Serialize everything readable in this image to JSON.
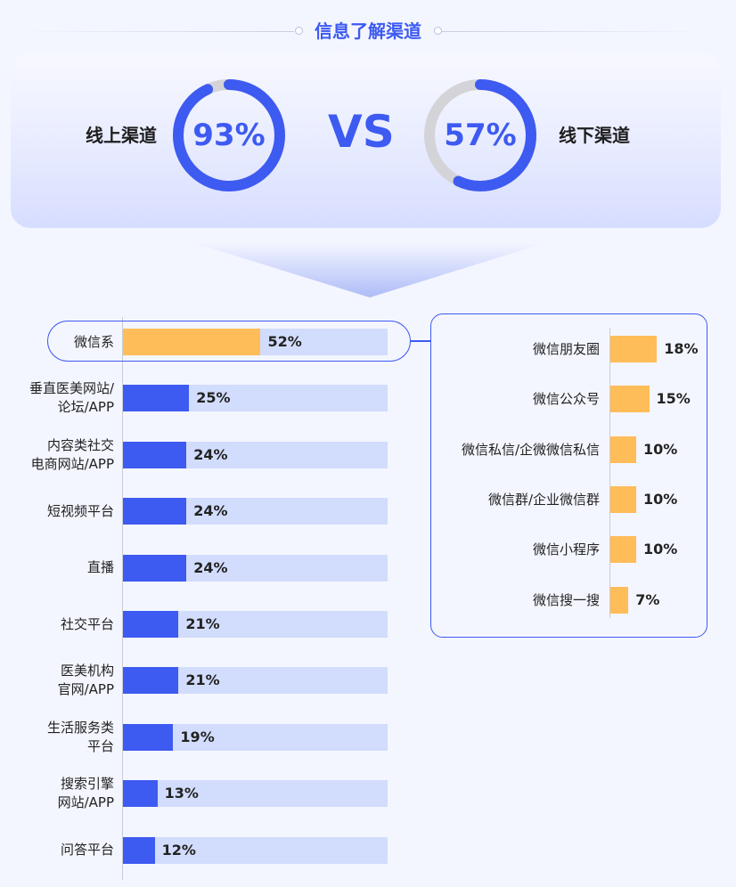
{
  "header": {
    "title": "信息了解渠道"
  },
  "comparison": {
    "vs_text": "VS",
    "online": {
      "label": "线上渠道",
      "percent": 93,
      "percent_text": "93%"
    },
    "offline": {
      "label": "线下渠道",
      "percent": 57,
      "percent_text": "57%"
    }
  },
  "colors": {
    "accent": "#3d5af1",
    "bar_bg": "#d2dcfc",
    "highlight_bar": "#ffbd59",
    "ring_track": "#d4d4d8"
  },
  "chart_data": [
    {
      "type": "bar",
      "orientation": "horizontal",
      "categories": [
        "微信系",
        "垂直医美网站/论坛/APP",
        "内容类社交电商网站/APP",
        "短视频平台",
        "直播",
        "社交平台",
        "医美机构官网/APP",
        "生活服务类平台",
        "搜索引擎网站/APP",
        "问答平台"
      ],
      "category_lines": [
        [
          "微信系"
        ],
        [
          "垂直医美网站/",
          "论坛/APP"
        ],
        [
          "内容类社交",
          "电商网站/APP"
        ],
        [
          "短视频平台"
        ],
        [
          "直播"
        ],
        [
          "社交平台"
        ],
        [
          "医美机构",
          "官网/APP"
        ],
        [
          "生活服务类",
          "平台"
        ],
        [
          "搜索引擎",
          "网站/APP"
        ],
        [
          "问答平台"
        ]
      ],
      "values": [
        52,
        25,
        24,
        24,
        24,
        21,
        21,
        19,
        13,
        12
      ],
      "value_labels": [
        "52%",
        "25%",
        "24%",
        "24%",
        "24%",
        "21%",
        "21%",
        "19%",
        "13%",
        "12%"
      ],
      "xlim": [
        0,
        100
      ],
      "highlight_index": 0
    },
    {
      "type": "bar",
      "orientation": "horizontal",
      "categories": [
        "微信朋友圈",
        "微信公众号",
        "微信私信/企微微信私信",
        "微信群/企业微信群",
        "微信小程序",
        "微信搜一搜"
      ],
      "values": [
        18,
        15,
        10,
        10,
        10,
        7
      ],
      "value_labels": [
        "18%",
        "15%",
        "10%",
        "10%",
        "10%",
        "7%"
      ]
    }
  ]
}
